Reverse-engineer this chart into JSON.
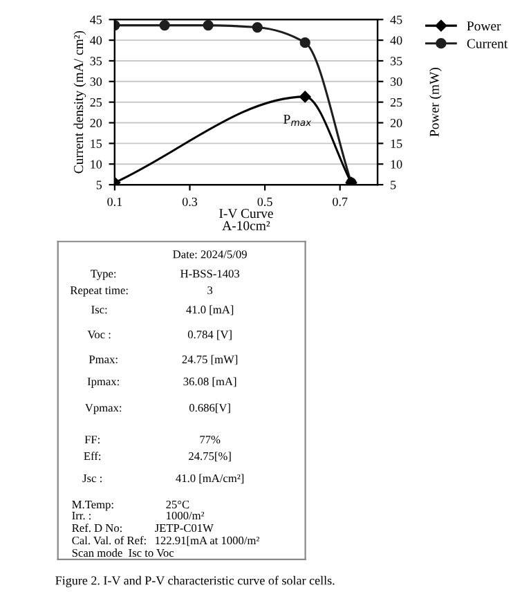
{
  "chart_data": [
    {
      "type": "line",
      "xlabel": "I-V Curve\nA-10cm²",
      "ylabel": "Current density (mA/ cm²)",
      "y2label": "Power (mW)",
      "xlim": [
        0.1,
        0.8
      ],
      "xticks": [
        0.1,
        0.3,
        0.5,
        0.7
      ],
      "ylim": [
        5,
        45
      ],
      "yticks": [
        5,
        10,
        15,
        20,
        25,
        30,
        35,
        40,
        45
      ],
      "y2lim": [
        5,
        45
      ],
      "y2ticks": [
        5,
        10,
        15,
        20,
        25,
        30,
        35,
        40,
        45
      ],
      "grid": "y",
      "legend": "top right",
      "line_style": "solid",
      "series": [
        {
          "name": "Power",
          "color": "#000000",
          "axis": "y2",
          "marker": "diamond",
          "x": [
            0.1,
            0.607,
            0.73
          ],
          "values": [
            5.5,
            26.3,
            5.5
          ]
        },
        {
          "name": "Current",
          "color": "#1e1e1e",
          "marker": "circle",
          "x": [
            0.1,
            0.233,
            0.349,
            0.48,
            0.607,
            0.73
          ],
          "values": [
            43.6,
            43.6,
            43.6,
            43.1,
            39.4,
            5.5
          ]
        }
      ],
      "annotations": [
        {
          "text": "P$_{max}$",
          "x": 0.607,
          "y": 26.3
        }
      ]
    },
    {
      "type": "other",
      "annotations": [
        "Date: 2024/5/09",
        "Type:",
        "H-BSS-1403",
        "Repeat time:",
        "3",
        "Isc:",
        "41.0 [mA]",
        "Voc :",
        "0.784 [V]",
        "Pmax:",
        "24.75 [mW]",
        "Ipmax:",
        "36.08 [mA]",
        "Vpmax:",
        "0.686[V]",
        "FF:",
        "77%",
        "Eff:",
        "24.75[%]",
        "Jsc :",
        "41.0 [mA/cm²]",
        "M.Temp:",
        "25°C",
        "Irr. :",
        "1000/m²",
        "Ref. D No:",
        "JETP-C01W",
        "Cal. Val. of Ref:",
        "122.91[mA at 1000/m²",
        "Scan mode  Isc to Voc",
        "Figure 2. I-V and P-V characteristic curve of solar cells."
      ]
    }
  ]
}
